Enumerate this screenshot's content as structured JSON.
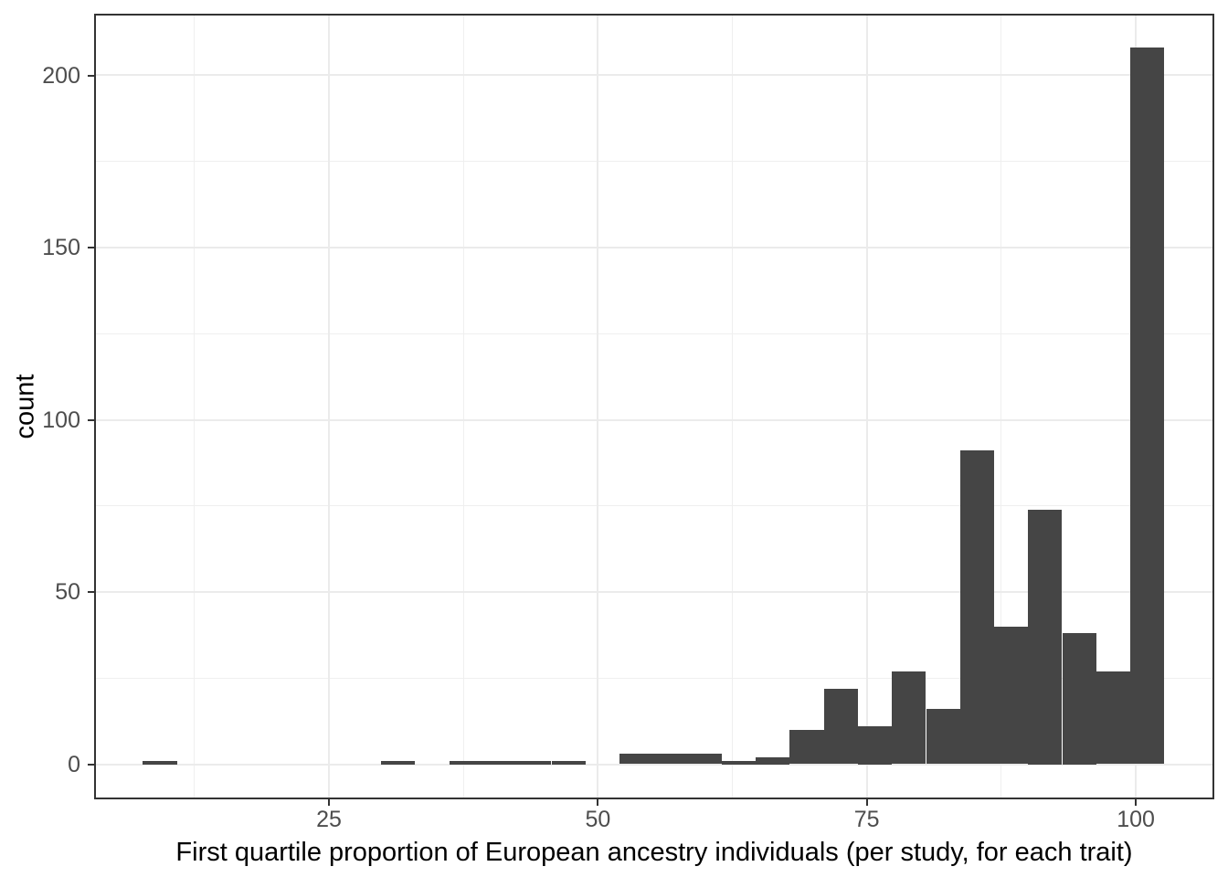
{
  "chart_data": {
    "type": "bar",
    "subtype": "histogram",
    "title": "",
    "xlabel": "First quartile proportion of European ancestry individuals (per study, for each trait)",
    "ylabel": "count",
    "xlim": [
      3.17,
      107.3
    ],
    "ylim": [
      -10.2,
      217.9
    ],
    "grid": true,
    "legend": false,
    "x_major_ticks": [
      25,
      50,
      75,
      100
    ],
    "x_minor_gridlines": [
      12.5,
      37.5,
      62.5,
      87.5
    ],
    "y_major_ticks": [
      0,
      50,
      100,
      150,
      200
    ],
    "y_minor_gridlines": [
      25,
      75,
      125,
      175
    ],
    "bins": [
      {
        "x0": 7.7,
        "x1": 10.87,
        "count": 1
      },
      {
        "x0": 10.87,
        "x1": 14.03,
        "count": 0
      },
      {
        "x0": 14.03,
        "x1": 17.2,
        "count": 0
      },
      {
        "x0": 17.2,
        "x1": 20.36,
        "count": 0
      },
      {
        "x0": 20.36,
        "x1": 23.53,
        "count": 0
      },
      {
        "x0": 23.53,
        "x1": 26.69,
        "count": 0
      },
      {
        "x0": 26.69,
        "x1": 29.86,
        "count": 0
      },
      {
        "x0": 29.86,
        "x1": 33.02,
        "count": 1
      },
      {
        "x0": 33.02,
        "x1": 36.19,
        "count": 0
      },
      {
        "x0": 36.19,
        "x1": 39.35,
        "count": 1
      },
      {
        "x0": 39.35,
        "x1": 42.52,
        "count": 1
      },
      {
        "x0": 42.52,
        "x1": 45.68,
        "count": 1
      },
      {
        "x0": 45.68,
        "x1": 48.85,
        "count": 1
      },
      {
        "x0": 48.85,
        "x1": 52.01,
        "count": 0
      },
      {
        "x0": 52.01,
        "x1": 55.18,
        "count": 3
      },
      {
        "x0": 55.18,
        "x1": 58.34,
        "count": 3
      },
      {
        "x0": 58.34,
        "x1": 61.51,
        "count": 3
      },
      {
        "x0": 61.51,
        "x1": 64.67,
        "count": 1
      },
      {
        "x0": 64.67,
        "x1": 67.84,
        "count": 2
      },
      {
        "x0": 67.84,
        "x1": 71.0,
        "count": 10
      },
      {
        "x0": 71.0,
        "x1": 74.17,
        "count": 22
      },
      {
        "x0": 74.17,
        "x1": 77.33,
        "count": 11
      },
      {
        "x0": 77.33,
        "x1": 80.5,
        "count": 27
      },
      {
        "x0": 80.5,
        "x1": 83.66,
        "count": 16
      },
      {
        "x0": 83.66,
        "x1": 86.83,
        "count": 91
      },
      {
        "x0": 86.83,
        "x1": 89.99,
        "count": 40
      },
      {
        "x0": 89.99,
        "x1": 93.16,
        "count": 74
      },
      {
        "x0": 93.16,
        "x1": 96.32,
        "count": 38
      },
      {
        "x0": 96.32,
        "x1": 99.49,
        "count": 27
      },
      {
        "x0": 99.49,
        "x1": 102.65,
        "count": 208
      }
    ],
    "colors": {
      "bar": "#454545",
      "panel_border": "#333333",
      "grid_major": "#ebebeb",
      "grid_minor": "#efefef",
      "tick_mark": "#333333",
      "tick_label": "#4d4d4d",
      "axis_title": "#000000",
      "background": "#ffffff"
    }
  }
}
